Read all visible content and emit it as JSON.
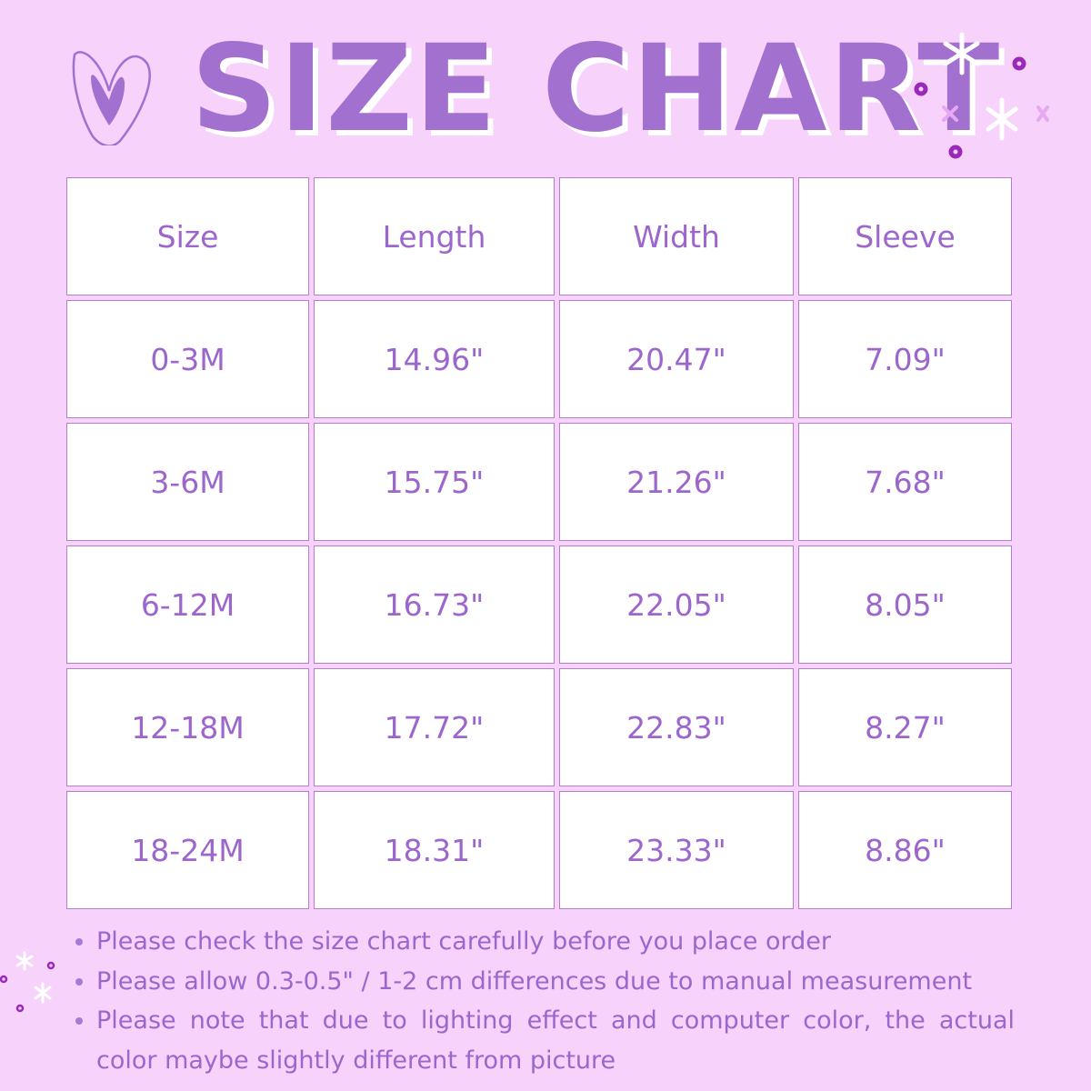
{
  "title": "SIZE CHART",
  "colors": {
    "background": "#f7d2fb",
    "accent": "#a270cf",
    "text": "#9c66cc",
    "cell": "#ffffff"
  },
  "icons": [
    "heart-icon",
    "sparkle-icon",
    "dot-icon"
  ],
  "table": {
    "headers": [
      "Size",
      "Length",
      "Width",
      "Sleeve"
    ],
    "rows": [
      [
        "0-3M",
        "14.96\"",
        "20.47\"",
        "7.09\""
      ],
      [
        "3-6M",
        "15.75\"",
        "21.26\"",
        "7.68\""
      ],
      [
        "6-12M",
        "16.73\"",
        "22.05\"",
        "8.05\""
      ],
      [
        "12-18M",
        "17.72\"",
        "22.83\"",
        "8.27\""
      ],
      [
        "18-24M",
        "18.31\"",
        "23.33\"",
        "8.86\""
      ]
    ]
  },
  "notes": [
    "Please check the size chart carefully before you place order",
    "Please allow 0.3-0.5\" / 1-2 cm differences due to manual measurement",
    "Please note that due to lighting effect and computer color, the actual color maybe slightly different from picture"
  ]
}
